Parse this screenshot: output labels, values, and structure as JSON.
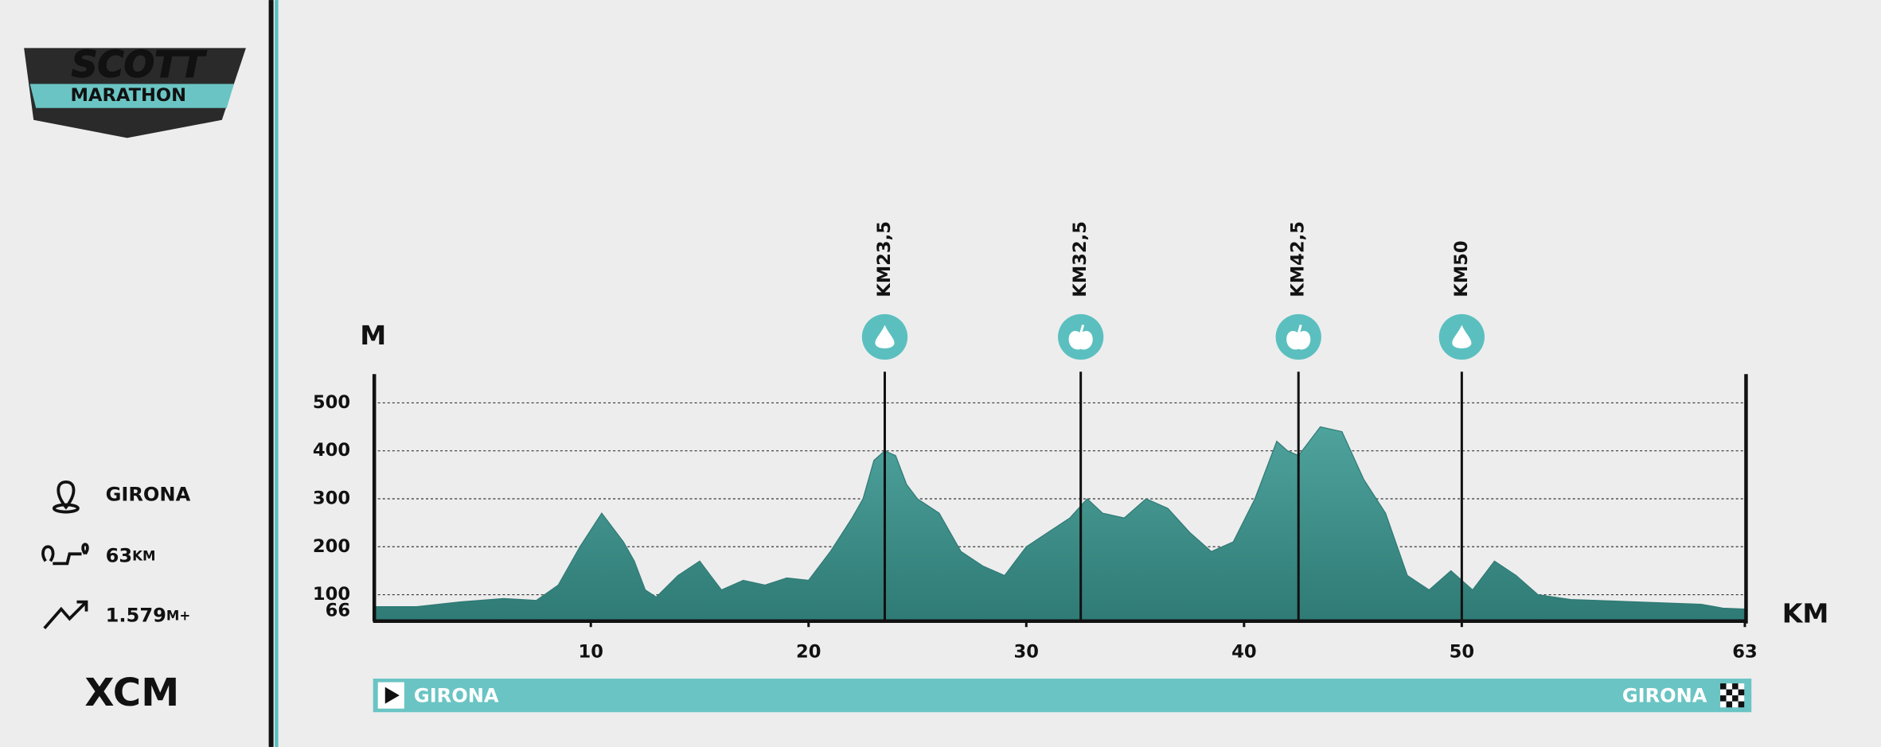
{
  "logo": {
    "brand": "SCOTT",
    "subtitle": "MARATHON"
  },
  "info": [
    {
      "text": "GIRONA"
    },
    {
      "text": "63",
      "unit": "KM"
    },
    {
      "text": "1.579",
      "unit": "M+"
    }
  ],
  "discipline": "XCM",
  "chart_data": {
    "type": "area",
    "x": [
      0,
      2,
      4,
      6,
      7.5,
      8.5,
      9.5,
      10.5,
      11.5,
      12,
      12.5,
      13,
      14,
      15,
      15.5,
      16,
      17,
      18,
      19,
      20,
      21,
      22,
      22.5,
      23,
      23.5,
      24,
      24.5,
      25,
      26,
      26.5,
      27,
      28,
      29,
      30,
      31,
      32,
      32.8,
      33.5,
      34.5,
      35.5,
      36.5,
      37.5,
      38.5,
      39.5,
      40.5,
      41.5,
      42,
      42.5,
      43.5,
      44.5,
      45.5,
      46.5,
      47.5,
      48.5,
      49.5,
      50.5,
      51.5,
      52.5,
      53.5,
      55,
      58,
      61,
      62,
      63
    ],
    "values": [
      75,
      75,
      85,
      92,
      88,
      120,
      200,
      270,
      210,
      170,
      110,
      95,
      140,
      170,
      140,
      110,
      130,
      120,
      135,
      130,
      190,
      260,
      300,
      380,
      400,
      390,
      330,
      300,
      270,
      230,
      190,
      160,
      140,
      200,
      230,
      260,
      300,
      270,
      260,
      300,
      280,
      230,
      190,
      210,
      300,
      420,
      400,
      390,
      450,
      440,
      340,
      270,
      140,
      110,
      150,
      110,
      170,
      140,
      100,
      90,
      85,
      80,
      72,
      70
    ],
    "color": "#4fa39d",
    "xlim": [
      0,
      63
    ],
    "xticks": [
      10,
      20,
      30,
      40,
      50,
      63
    ],
    "ylim": [
      45,
      560
    ],
    "yticks": [
      66,
      100,
      200,
      300,
      400,
      500
    ],
    "y_label": "M",
    "x_label": "KM",
    "grid": true,
    "markers": [
      {
        "value": 23.5,
        "label": "KM23,5",
        "icon": "water"
      },
      {
        "value": 32.5,
        "label": "KM32,5",
        "icon": "food"
      },
      {
        "value": 42.5,
        "label": "KM42,5",
        "icon": "food"
      },
      {
        "value": 50,
        "label": "KM50",
        "icon": "water"
      }
    ]
  },
  "route": {
    "start": "GIRONA",
    "finish": "GIRONA"
  }
}
